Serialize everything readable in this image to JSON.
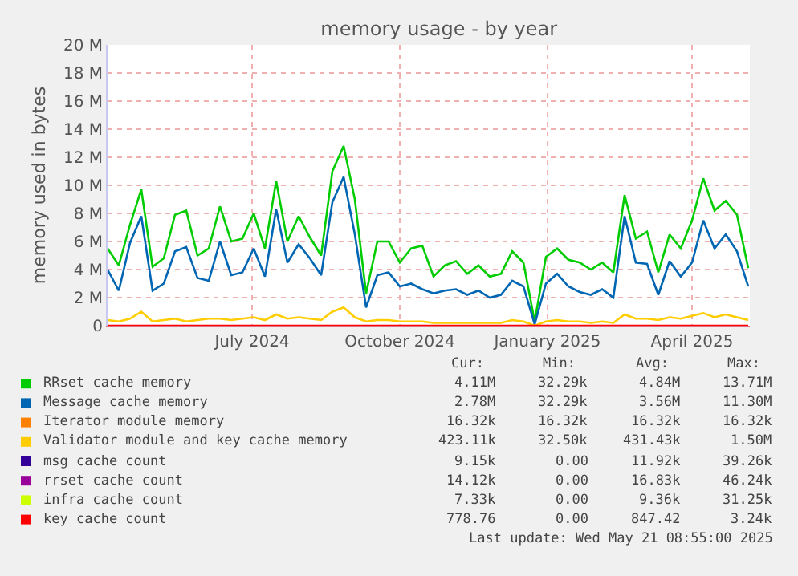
{
  "chart_data": {
    "type": "line",
    "title": "memory usage - by year",
    "ylabel": "memory used in bytes",
    "x": [
      "2024-04-02",
      "2024-04-09",
      "2024-04-16",
      "2024-04-23",
      "2024-04-30",
      "2024-05-07",
      "2024-05-14",
      "2024-05-21",
      "2024-05-28",
      "2024-06-04",
      "2024-06-11",
      "2024-06-18",
      "2024-06-25",
      "2024-07-02",
      "2024-07-09",
      "2024-07-16",
      "2024-07-23",
      "2024-07-30",
      "2024-08-06",
      "2024-08-13",
      "2024-08-20",
      "2024-08-27",
      "2024-09-03",
      "2024-09-10",
      "2024-09-17",
      "2024-09-24",
      "2024-10-01",
      "2024-10-08",
      "2024-10-15",
      "2024-10-22",
      "2024-10-29",
      "2024-11-05",
      "2024-11-12",
      "2024-11-19",
      "2024-11-26",
      "2024-12-03",
      "2024-12-10",
      "2024-12-17",
      "2024-12-24",
      "2024-12-31",
      "2025-01-07",
      "2025-01-14",
      "2025-01-21",
      "2025-01-28",
      "2025-02-04",
      "2025-02-11",
      "2025-02-18",
      "2025-02-25",
      "2025-03-04",
      "2025-03-11",
      "2025-03-18",
      "2025-03-25",
      "2025-04-01",
      "2025-04-08",
      "2025-04-15",
      "2025-04-22",
      "2025-04-29",
      "2025-05-06"
    ],
    "series": [
      {
        "name": "RRset cache memory",
        "color": "#00cc00",
        "values": [
          5.5,
          4.3,
          7.2,
          9.7,
          4.2,
          4.8,
          7.9,
          8.2,
          5.0,
          5.5,
          8.5,
          6.0,
          6.2,
          8.0,
          5.5,
          10.3,
          6.0,
          7.8,
          6.3,
          5.0,
          11.0,
          12.8,
          9.0,
          2.3,
          6.0,
          6.0,
          4.5,
          5.5,
          5.7,
          3.5,
          4.3,
          4.6,
          3.7,
          4.3,
          3.5,
          3.7,
          5.3,
          4.5,
          0.3,
          4.9,
          5.5,
          4.7,
          4.5,
          4.0,
          4.5,
          3.8,
          9.3,
          6.2,
          6.7,
          3.8,
          6.5,
          5.5,
          7.5,
          10.5,
          8.2,
          8.9,
          7.9,
          4.1
        ]
      },
      {
        "name": "Message cache memory",
        "color": "#0066b3",
        "values": [
          4.0,
          2.5,
          5.9,
          7.8,
          2.5,
          3.0,
          5.3,
          5.6,
          3.4,
          3.2,
          6.0,
          3.6,
          3.8,
          5.5,
          3.5,
          8.3,
          4.5,
          5.8,
          4.8,
          3.6,
          8.8,
          10.6,
          6.5,
          1.3,
          3.6,
          3.8,
          2.8,
          3.0,
          2.6,
          2.3,
          2.5,
          2.6,
          2.2,
          2.5,
          2.0,
          2.2,
          3.2,
          2.8,
          0.1,
          3.0,
          3.7,
          2.8,
          2.4,
          2.2,
          2.6,
          2.0,
          7.8,
          4.5,
          4.4,
          2.2,
          4.6,
          3.5,
          4.5,
          7.5,
          5.5,
          6.5,
          5.3,
          2.8
        ]
      },
      {
        "name": "Iterator module memory",
        "color": "#ff8000",
        "values": [
          null,
          null,
          null,
          null,
          null,
          null,
          null,
          null,
          null,
          null,
          null,
          null,
          null,
          null,
          null,
          null,
          null,
          null,
          null,
          null,
          null,
          null,
          null,
          null,
          null,
          null,
          null,
          null,
          null,
          null,
          null,
          null,
          null,
          null,
          null,
          null,
          null,
          null,
          null,
          null,
          null,
          null,
          null,
          null,
          null,
          null,
          null,
          null,
          null,
          null,
          null,
          null,
          null,
          null,
          null,
          null,
          null,
          null
        ]
      },
      {
        "name": "Validator module and key cache memory",
        "color": "#ffcc00",
        "values": [
          0.4,
          0.3,
          0.5,
          1.0,
          0.3,
          0.4,
          0.5,
          0.3,
          0.4,
          0.5,
          0.5,
          0.4,
          0.5,
          0.6,
          0.4,
          0.8,
          0.5,
          0.6,
          0.5,
          0.4,
          1.0,
          1.3,
          0.6,
          0.3,
          0.4,
          0.4,
          0.3,
          0.3,
          0.3,
          0.2,
          0.2,
          0.2,
          0.2,
          0.2,
          0.2,
          0.2,
          0.4,
          0.3,
          0.0,
          0.3,
          0.4,
          0.3,
          0.3,
          0.2,
          0.3,
          0.2,
          0.8,
          0.5,
          0.5,
          0.4,
          0.6,
          0.5,
          0.7,
          0.9,
          0.6,
          0.8,
          0.6,
          0.4
        ]
      },
      {
        "name": "msg cache count",
        "color": "#330099",
        "values": [
          null,
          null,
          null,
          null,
          null,
          null,
          null,
          null,
          null,
          null,
          null,
          null,
          null,
          null,
          null,
          null,
          null,
          null,
          null,
          null,
          null,
          null,
          null,
          null,
          null,
          null,
          null,
          null,
          null,
          null,
          null,
          null,
          null,
          null,
          null,
          null,
          null,
          null,
          null,
          null,
          null,
          null,
          null,
          null,
          null,
          null,
          null,
          null,
          null,
          null,
          null,
          null,
          null,
          null,
          null,
          null,
          null,
          null
        ]
      },
      {
        "name": "rrset cache count",
        "color": "#990099",
        "values": [
          null,
          null,
          null,
          null,
          null,
          null,
          null,
          null,
          null,
          null,
          null,
          null,
          null,
          null,
          null,
          null,
          null,
          null,
          null,
          null,
          null,
          null,
          null,
          null,
          null,
          null,
          null,
          null,
          null,
          null,
          null,
          null,
          null,
          null,
          null,
          null,
          null,
          null,
          null,
          null,
          null,
          null,
          null,
          null,
          null,
          null,
          null,
          null,
          null,
          null,
          null,
          null,
          null,
          null,
          null,
          null,
          null,
          null
        ]
      },
      {
        "name": "infra cache count",
        "color": "#ccff00",
        "values": [
          null,
          null,
          null,
          null,
          null,
          null,
          null,
          null,
          null,
          null,
          null,
          null,
          null,
          null,
          null,
          null,
          null,
          null,
          null,
          null,
          null,
          null,
          null,
          null,
          null,
          null,
          null,
          null,
          null,
          null,
          null,
          null,
          null,
          null,
          null,
          null,
          null,
          null,
          null,
          null,
          null,
          null,
          null,
          null,
          null,
          null,
          null,
          null,
          null,
          null,
          null,
          null,
          null,
          null,
          null,
          null,
          null,
          null
        ]
      },
      {
        "name": "key cache count",
        "color": "#ff0000",
        "x": [
          "2024-04-02",
          "2025-05-06"
        ],
        "values": [
          0,
          0
        ]
      }
    ],
    "xlim": [
      "2024-04-02",
      "2025-05-07"
    ],
    "xticks": [
      {
        "value": "2024-07-01",
        "label": "July 2024"
      },
      {
        "value": "2024-10-01",
        "label": "October 2024"
      },
      {
        "value": "2025-01-01",
        "label": "January 2025"
      },
      {
        "value": "2025-04-01",
        "label": "April 2025"
      }
    ],
    "ylim": [
      0,
      20
    ],
    "yticks": [
      0,
      {
        "value": 2,
        "label": "2 M"
      },
      {
        "value": 4,
        "label": "4 M"
      },
      {
        "value": 6,
        "label": "6 M"
      },
      {
        "value": 8,
        "label": "8 M"
      },
      {
        "value": 10,
        "label": "10 M"
      },
      {
        "value": 12,
        "label": "12 M"
      },
      {
        "value": 14,
        "label": "14 M"
      },
      {
        "value": 16,
        "label": "16 M"
      },
      {
        "value": 18,
        "label": "18 M"
      },
      {
        "value": 20,
        "label": "20 M"
      }
    ],
    "grid": true,
    "legend": "bottom",
    "marker": "none",
    "line_style": "solid",
    "annotations": [
      "Cur:",
      "Min:",
      "Avg:",
      "Max:",
      "4.11M",
      "32.29k",
      "4.84M",
      "13.71M",
      "2.78M",
      "32.29k",
      "3.56M",
      "11.30M",
      "16.32k",
      "16.32k",
      "16.32k",
      "16.32k",
      "423.11k",
      "32.50k",
      "431.43k",
      "1.50M",
      "9.15k",
      "0.00",
      "11.92k",
      "39.26k",
      "14.12k",
      "0.00",
      "16.83k",
      "46.24k",
      "7.33k",
      "0.00",
      "9.36k",
      "31.25k",
      "778.76",
      "0.00",
      "847.42",
      "3.24k",
      "Last update: Wed May 21 08:55:00 2025"
    ]
  }
}
